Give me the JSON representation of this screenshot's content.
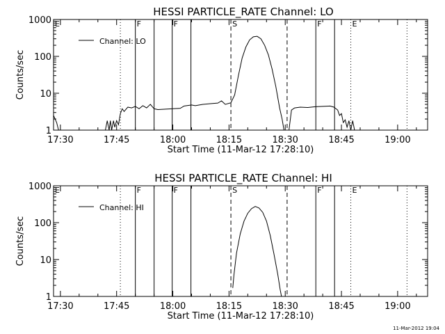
{
  "chart_data": [
    {
      "type": "line",
      "title": "HESSI PARTICLE_RATE Channel: LO",
      "xlabel": "Start Time (11-Mar-12 17:28:10)",
      "ylabel": "Counts/sec",
      "y_scale": "log",
      "ylim": [
        1,
        1000
      ],
      "y_ticks": [
        "1",
        "10",
        "100",
        "1000"
      ],
      "x_range": [
        "17:28:10",
        "19:08:00"
      ],
      "x_ticks": [
        "17:30",
        "17:45",
        "18:00",
        "18:15",
        "18:30",
        "18:45",
        "19:00"
      ],
      "legend": {
        "label": "Channel: LO",
        "position": "top-left"
      },
      "markers": [
        {
          "time": "17:28:10",
          "style": "dotted",
          "label": "E"
        },
        {
          "time": "17:46:00",
          "style": "dotted",
          "label": ""
        },
        {
          "time": "17:50:00",
          "style": "solid",
          "label": "F"
        },
        {
          "time": "17:55:00",
          "style": "solid",
          "label": ""
        },
        {
          "time": "17:59:50",
          "style": "solid",
          "label": "F"
        },
        {
          "time": "18:04:50",
          "style": "solid",
          "label": ""
        },
        {
          "time": "18:15:30",
          "style": "dashed",
          "label": "S"
        },
        {
          "time": "18:30:30",
          "style": "dashed",
          "label": ""
        },
        {
          "time": "18:38:10",
          "style": "solid",
          "label": "F"
        },
        {
          "time": "18:43:10",
          "style": "solid",
          "label": ""
        },
        {
          "time": "18:47:30",
          "style": "dotted",
          "label": "E"
        },
        {
          "time": "19:02:30",
          "style": "dotted",
          "label": ""
        }
      ],
      "series": [
        {
          "name": "Channel: LO",
          "points": [
            [
              "17:28:10",
              2.5
            ],
            [
              "17:29:00",
              1.6
            ],
            [
              "17:29:30",
              1
            ],
            [
              "17:42:00",
              1
            ],
            [
              "17:42:30",
              1.8
            ],
            [
              "17:43:00",
              1
            ],
            [
              "17:43:20",
              1.8
            ],
            [
              "17:43:40",
              1
            ],
            [
              "17:44:10",
              1.8
            ],
            [
              "17:44:30",
              1.2
            ],
            [
              "17:45:00",
              1.8
            ],
            [
              "17:45:30",
              1.4
            ],
            [
              "17:46:00",
              2.8
            ],
            [
              "17:46:30",
              3.8
            ],
            [
              "17:47:00",
              3.2
            ],
            [
              "17:48:00",
              4.2
            ],
            [
              "17:49:00",
              4.0
            ],
            [
              "17:50:00",
              4.4
            ],
            [
              "17:51:00",
              3.8
            ],
            [
              "17:52:00",
              4.6
            ],
            [
              "17:53:00",
              4.0
            ],
            [
              "17:54:00",
              5.0
            ],
            [
              "17:55:00",
              3.8
            ],
            [
              "17:56:00",
              3.6
            ],
            [
              "17:58:00",
              3.7
            ],
            [
              "18:00:00",
              3.8
            ],
            [
              "18:02:00",
              3.9
            ],
            [
              "18:03:00",
              4.5
            ],
            [
              "18:05:00",
              4.8
            ],
            [
              "18:06:00",
              4.6
            ],
            [
              "18:08:00",
              5.0
            ],
            [
              "18:10:00",
              5.2
            ],
            [
              "18:12:00",
              5.4
            ],
            [
              "18:13:00",
              6.2
            ],
            [
              "18:14:00",
              5.0
            ],
            [
              "18:15:30",
              5.5
            ],
            [
              "18:16:30",
              9
            ],
            [
              "18:17:30",
              30
            ],
            [
              "18:18:30",
              90
            ],
            [
              "18:19:30",
              180
            ],
            [
              "18:20:30",
              280
            ],
            [
              "18:21:30",
              340
            ],
            [
              "18:22:30",
              350
            ],
            [
              "18:23:30",
              300
            ],
            [
              "18:24:30",
              200
            ],
            [
              "18:25:30",
              110
            ],
            [
              "18:26:30",
              45
            ],
            [
              "18:27:30",
              15
            ],
            [
              "18:28:30",
              4
            ],
            [
              "18:29:10",
              2
            ],
            [
              "18:29:40",
              1
            ],
            [
              "18:31:00",
              1
            ],
            [
              "18:31:40",
              3.5
            ],
            [
              "18:32:30",
              4.0
            ],
            [
              "18:34:00",
              4.2
            ],
            [
              "18:36:00",
              4.1
            ],
            [
              "18:38:00",
              4.3
            ],
            [
              "18:40:00",
              4.4
            ],
            [
              "18:42:00",
              4.5
            ],
            [
              "18:43:00",
              4.2
            ],
            [
              "18:44:00",
              3.5
            ],
            [
              "18:44:30",
              2.5
            ],
            [
              "18:45:00",
              2.8
            ],
            [
              "18:45:30",
              1.6
            ],
            [
              "18:46:00",
              1.9
            ],
            [
              "18:46:30",
              1.2
            ],
            [
              "18:47:00",
              1.8
            ],
            [
              "18:47:30",
              1.0
            ],
            [
              "18:48:00",
              1.8
            ],
            [
              "18:48:30",
              1.0
            ]
          ]
        }
      ]
    },
    {
      "type": "line",
      "title": "HESSI PARTICLE_RATE Channel: HI",
      "xlabel": "Start Time (11-Mar-12 17:28:10)",
      "ylabel": "Counts/sec",
      "y_scale": "log",
      "ylim": [
        1,
        1000
      ],
      "y_ticks": [
        "1",
        "10",
        "100",
        "1000"
      ],
      "x_range": [
        "17:28:10",
        "19:08:00"
      ],
      "x_ticks": [
        "17:30",
        "17:45",
        "18:00",
        "18:15",
        "18:30",
        "18:45",
        "19:00"
      ],
      "legend": {
        "label": "Channel: HI",
        "position": "top-left"
      },
      "markers": [
        {
          "time": "17:28:10",
          "style": "dotted",
          "label": "E"
        },
        {
          "time": "17:46:00",
          "style": "dotted",
          "label": ""
        },
        {
          "time": "17:50:00",
          "style": "solid",
          "label": "F"
        },
        {
          "time": "17:55:00",
          "style": "solid",
          "label": ""
        },
        {
          "time": "17:59:50",
          "style": "solid",
          "label": "F"
        },
        {
          "time": "18:04:50",
          "style": "solid",
          "label": ""
        },
        {
          "time": "18:15:30",
          "style": "dashed",
          "label": "S"
        },
        {
          "time": "18:30:30",
          "style": "dashed",
          "label": ""
        },
        {
          "time": "18:38:10",
          "style": "solid",
          "label": "F"
        },
        {
          "time": "18:43:10",
          "style": "solid",
          "label": ""
        },
        {
          "time": "18:47:30",
          "style": "dotted",
          "label": "E"
        },
        {
          "time": "19:02:30",
          "style": "dotted",
          "label": ""
        }
      ],
      "series": [
        {
          "name": "Channel: HI",
          "points": [
            [
              "18:16:00",
              1.7
            ],
            [
              "18:16:20",
              4
            ],
            [
              "18:17:00",
              15
            ],
            [
              "18:18:00",
              50
            ],
            [
              "18:19:00",
              110
            ],
            [
              "18:20:00",
              180
            ],
            [
              "18:21:00",
              240
            ],
            [
              "18:22:00",
              275
            ],
            [
              "18:23:00",
              250
            ],
            [
              "18:24:00",
              190
            ],
            [
              "18:25:00",
              110
            ],
            [
              "18:26:00",
              45
            ],
            [
              "18:27:00",
              14
            ],
            [
              "18:28:00",
              4
            ],
            [
              "18:28:40",
              1.5
            ],
            [
              "18:29:00",
              1
            ]
          ]
        }
      ]
    }
  ],
  "footer": {
    "timestamp": "11-Mar-2012 19:04"
  }
}
